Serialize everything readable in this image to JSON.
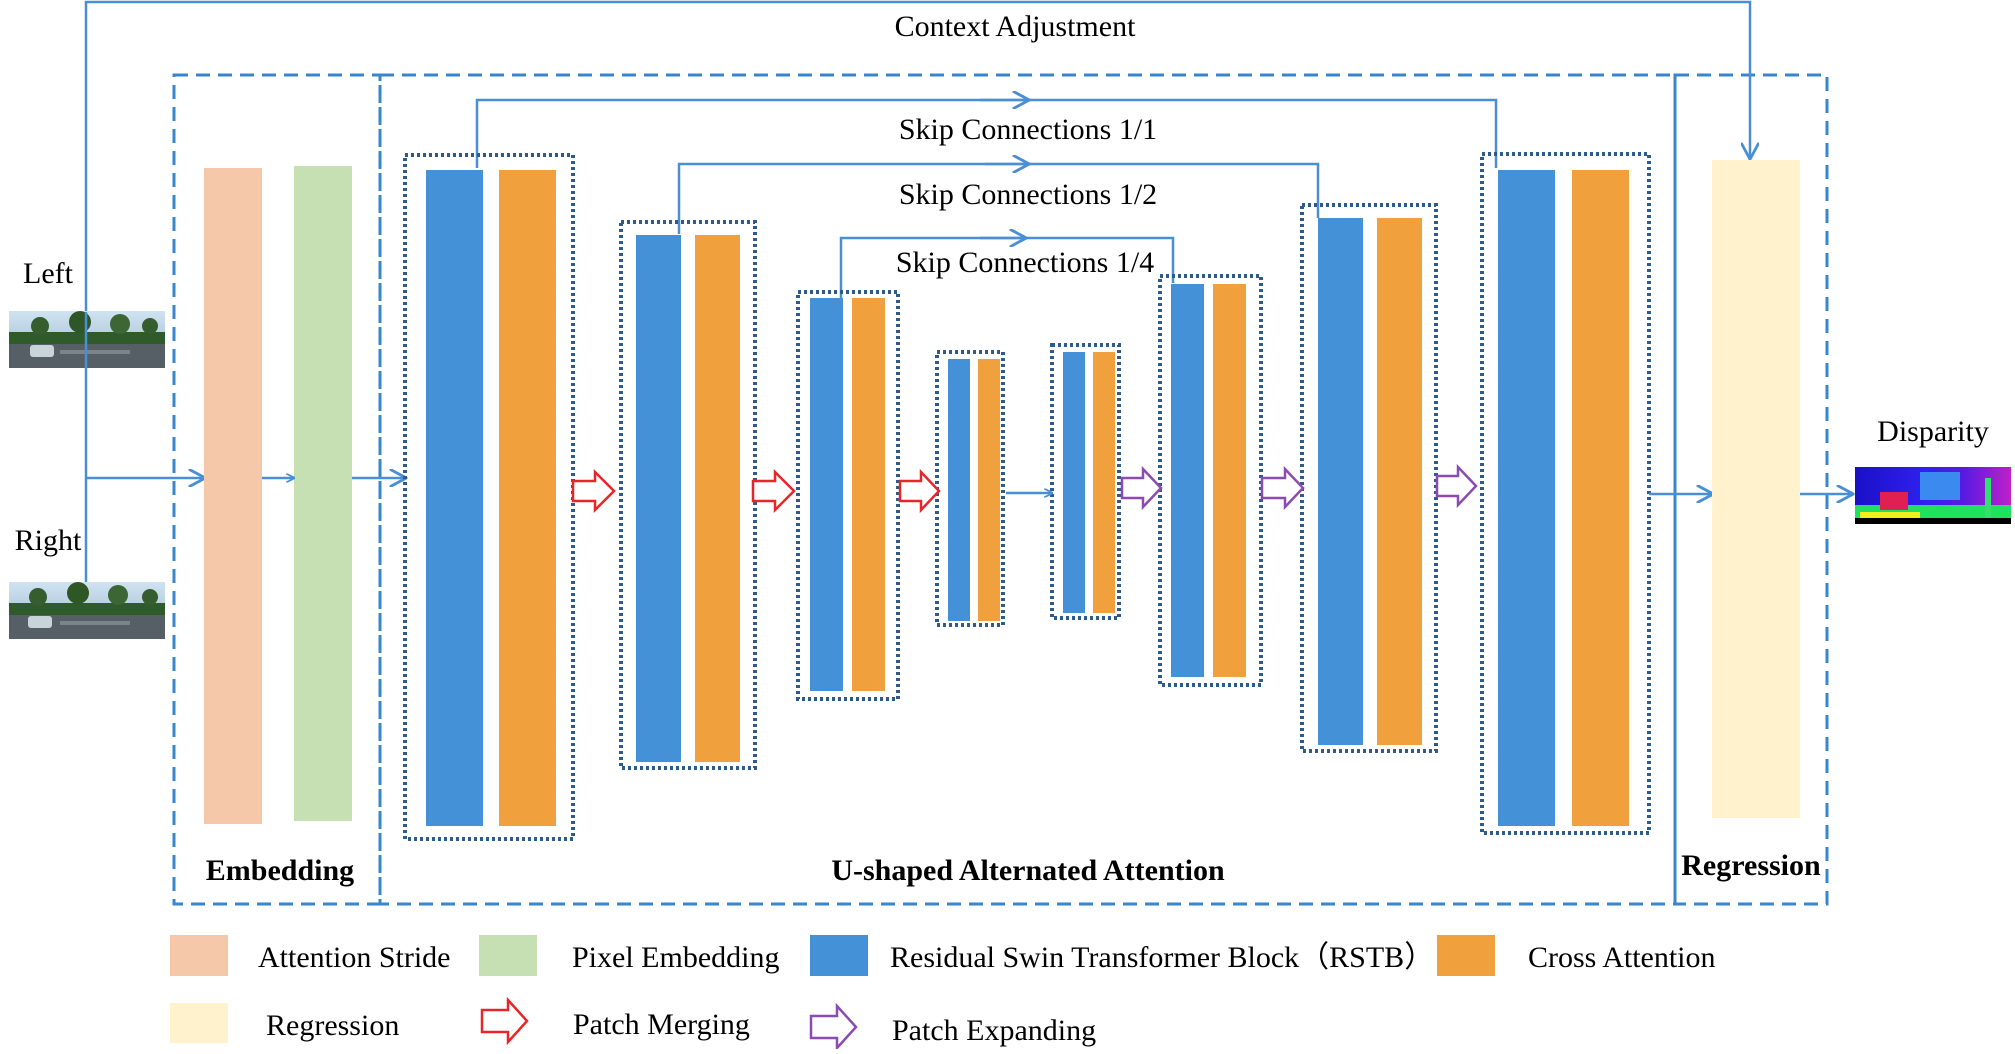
{
  "colors": {
    "attention_stride": "#F6C8AA",
    "pixel_embedding": "#C6E0B4",
    "rstb": "#4491D8",
    "cross_attention": "#F0A03C",
    "regression": "#FFF2CC",
    "flow_line": "#4A8FD4",
    "dashed_box": "#3A86CC",
    "dotted_box": "#2E5B8A",
    "patch_merging": "#E8262A",
    "patch_expanding": "#8C4BB0"
  },
  "labels": {
    "context_adjustment": "Context Adjustment",
    "skip_1_1": "Skip Connections 1/1",
    "skip_1_2": "Skip Connections 1/2",
    "skip_1_4": "Skip Connections 1/4",
    "left": "Left",
    "right": "Right",
    "disparity": "Disparity",
    "embedding": "Embedding",
    "u_shaped": "U-shaped Alternated Attention",
    "regression": "Regression"
  },
  "legend": [
    {
      "label": "Attention Stride",
      "swatch": "attention_stride"
    },
    {
      "label": "Pixel Embedding",
      "swatch": "pixel_embedding"
    },
    {
      "label": "Residual Swin Transformer Block（RSTB）",
      "swatch": "rstb"
    },
    {
      "label": "Cross Attention",
      "swatch": "cross_attention"
    },
    {
      "label": "Regression",
      "swatch": "regression"
    },
    {
      "label": "Patch Merging",
      "swatch": "patch_merging"
    },
    {
      "label": "Patch Expanding",
      "swatch": "patch_expanding"
    }
  ]
}
